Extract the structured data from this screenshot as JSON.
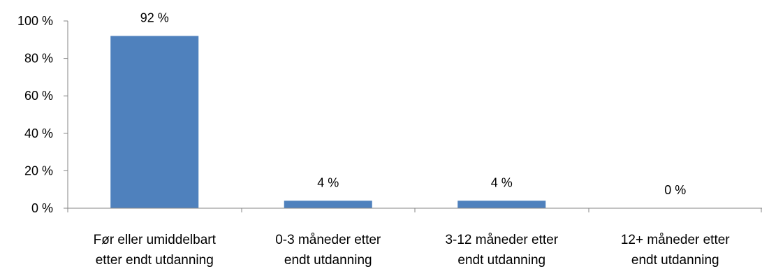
{
  "chart_data": {
    "type": "bar",
    "categories": [
      [
        "Før eller umiddelbart",
        "etter endt utdanning"
      ],
      [
        "0-3 måneder etter",
        "endt utdanning"
      ],
      [
        "3-12 måneder etter",
        "endt utdanning"
      ],
      [
        "12+ måneder etter",
        "endt utdanning"
      ]
    ],
    "values": [
      92,
      4,
      4,
      0
    ],
    "data_labels": [
      "92 %",
      "4 %",
      "4 %",
      "0 %"
    ],
    "y_ticks": [
      0,
      20,
      40,
      60,
      80,
      100
    ],
    "y_tick_labels": [
      "0 %",
      "20 %",
      "40 %",
      "60 %",
      "80 %",
      "100 %"
    ],
    "ylim": [
      0,
      100
    ],
    "title": "",
    "xlabel": "",
    "ylabel": "",
    "grid": false,
    "legend": "none",
    "bar_color": "#4f81bd",
    "axis_color": "#868686"
  }
}
